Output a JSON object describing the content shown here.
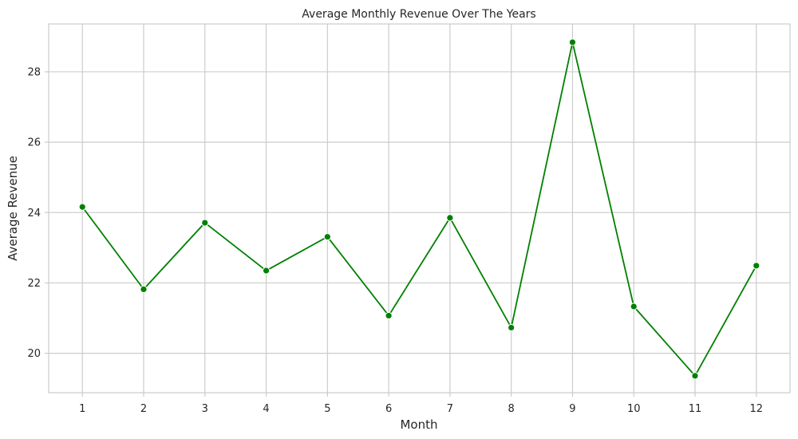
{
  "chart_data": {
    "type": "line",
    "title": "Average Monthly Revenue Over The Years",
    "xlabel": "Month",
    "ylabel": "Average Revenue",
    "x": [
      1,
      2,
      3,
      4,
      5,
      6,
      7,
      8,
      9,
      10,
      11,
      12
    ],
    "x_ticks": [
      "1",
      "2",
      "3",
      "4",
      "5",
      "6",
      "7",
      "8",
      "9",
      "10",
      "11",
      "12"
    ],
    "y_ticks": [
      20,
      22,
      24,
      26,
      28
    ],
    "xlim": [
      0.45,
      12.55
    ],
    "ylim": [
      18.88,
      29.36
    ],
    "grid": true,
    "series": [
      {
        "values": [
          24.16,
          21.82,
          23.71,
          22.35,
          23.31,
          21.07,
          23.85,
          20.73,
          28.84,
          21.33,
          19.36,
          22.49
        ],
        "color": "#008000",
        "marker": "circle"
      }
    ]
  }
}
